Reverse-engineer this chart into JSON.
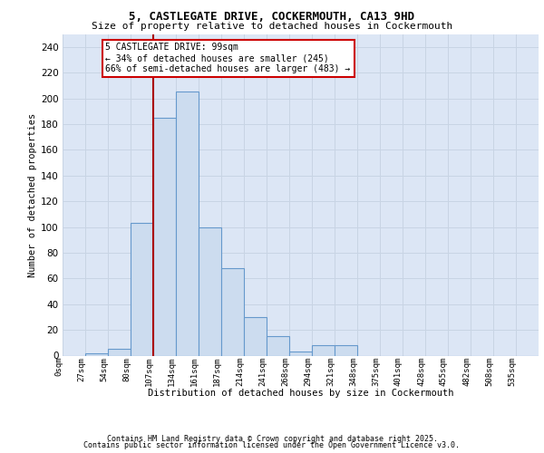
{
  "title1": "5, CASTLEGATE DRIVE, COCKERMOUTH, CA13 9HD",
  "title2": "Size of property relative to detached houses in Cockermouth",
  "xlabel": "Distribution of detached houses by size in Cockermouth",
  "ylabel": "Number of detached properties",
  "bar_labels": [
    "0sqm",
    "27sqm",
    "54sqm",
    "80sqm",
    "107sqm",
    "134sqm",
    "161sqm",
    "187sqm",
    "214sqm",
    "241sqm",
    "268sqm",
    "294sqm",
    "321sqm",
    "348sqm",
    "375sqm",
    "401sqm",
    "428sqm",
    "455sqm",
    "482sqm",
    "508sqm",
    "535sqm"
  ],
  "bar_values": [
    0,
    2,
    5,
    103,
    185,
    205,
    100,
    68,
    30,
    15,
    3,
    8,
    8,
    0,
    0,
    0,
    0,
    0,
    0,
    0,
    0
  ],
  "bar_color": "#ccdcef",
  "bar_edge_color": "#6699cc",
  "vline_color": "#aa0000",
  "vline_x": 4.0,
  "annotation_line1": "5 CASTLEGATE DRIVE: 99sqm",
  "annotation_line2": "← 34% of detached houses are smaller (245)",
  "annotation_line3": "66% of semi-detached houses are larger (483) →",
  "annotation_box_facecolor": "#ffffff",
  "annotation_box_edgecolor": "#cc0000",
  "ylim": [
    0,
    250
  ],
  "yticks": [
    0,
    20,
    40,
    60,
    80,
    100,
    120,
    140,
    160,
    180,
    200,
    220,
    240
  ],
  "grid_color": "#c8d4e4",
  "background_color": "#dce6f5",
  "footer1": "Contains HM Land Registry data © Crown copyright and database right 2025.",
  "footer2": "Contains public sector information licensed under the Open Government Licence v3.0."
}
